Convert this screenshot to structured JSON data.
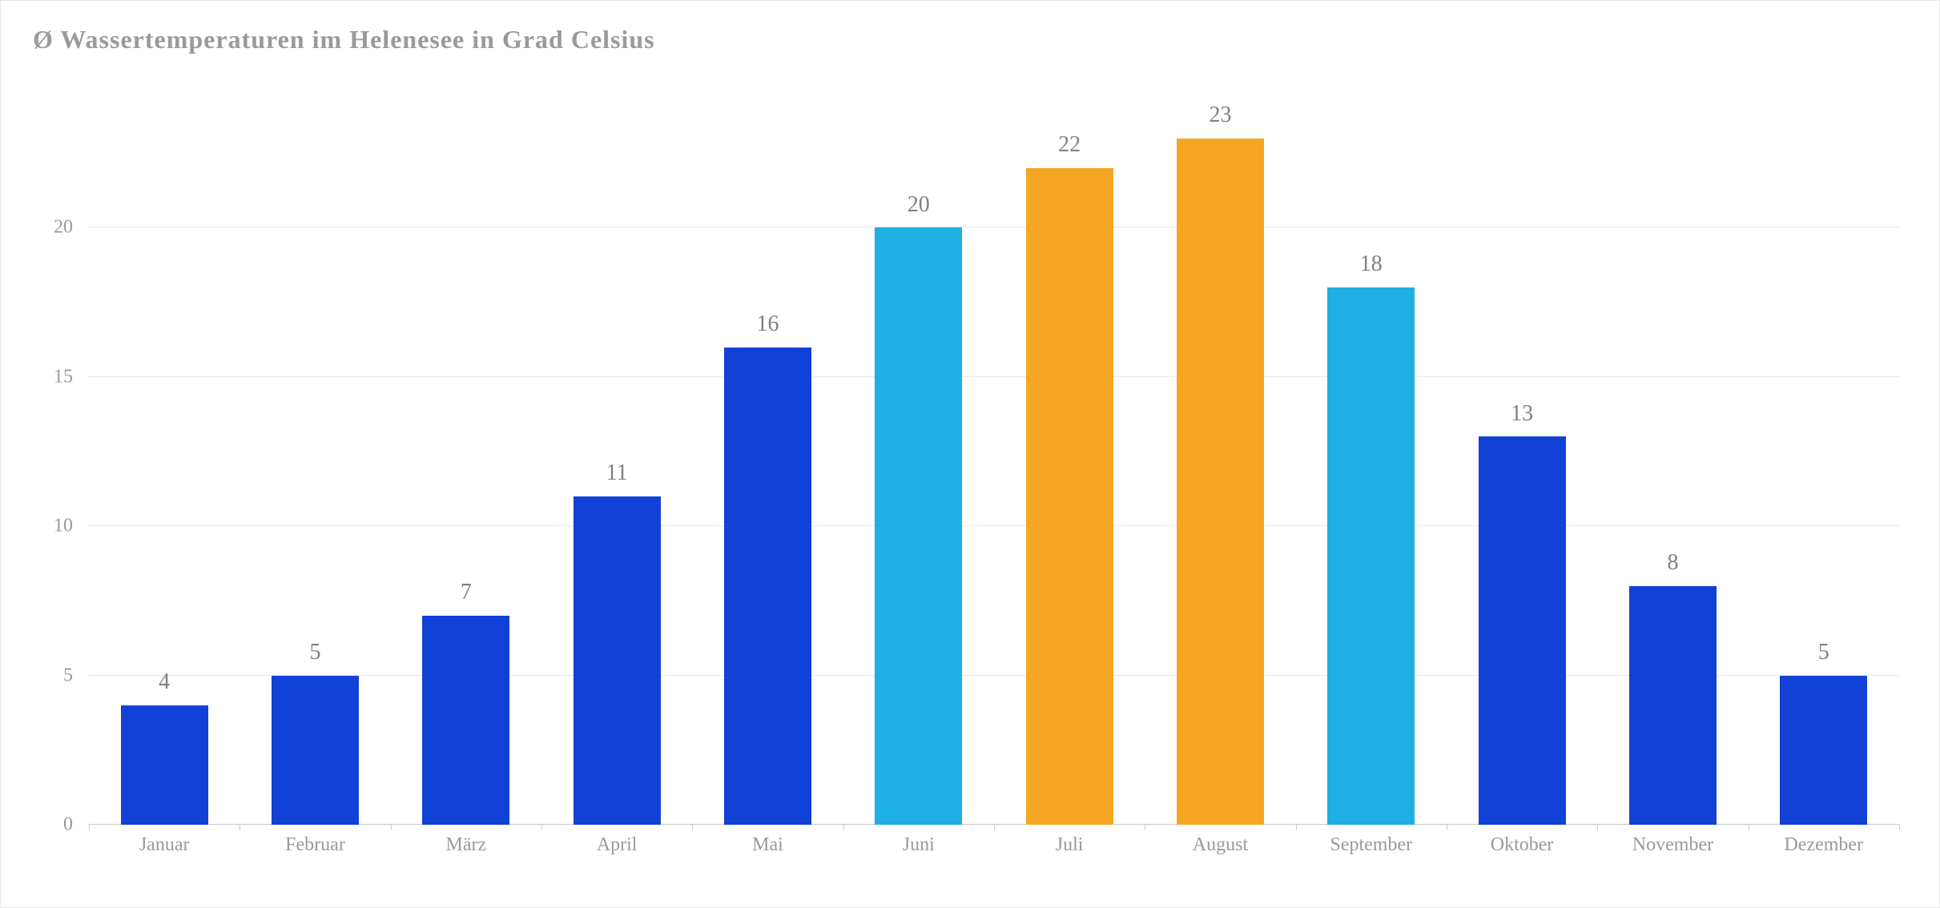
{
  "chart": {
    "type": "bar",
    "title": "Ø Wassertemperaturen im Helenesee in Grad Celsius",
    "title_fontsize": 32,
    "title_color": "#9a9a9a",
    "categories": [
      "Januar",
      "Februar",
      "März",
      "April",
      "Mai",
      "Juni",
      "Juli",
      "August",
      "September",
      "Oktober",
      "November",
      "Dezember"
    ],
    "values": [
      4,
      5,
      7,
      11,
      16,
      20,
      22,
      23,
      18,
      13,
      8,
      5
    ],
    "bar_colors": [
      "#1141d6",
      "#1141d6",
      "#1141d6",
      "#1141d6",
      "#1141d6",
      "#1eafe4",
      "#f5a623",
      "#f5a623",
      "#1eafe4",
      "#1141d6",
      "#1141d6",
      "#1141d6"
    ],
    "ylim": [
      0,
      25
    ],
    "yticks": [
      0,
      5,
      10,
      15,
      20
    ],
    "ytick_fontsize": 24,
    "xtick_fontsize": 24,
    "datalabel_fontsize": 28,
    "datalabel_color": "#808080",
    "axis_label_color": "#9a9a9a",
    "gridline_color": "#e8e8e8",
    "axis_line_color": "#c9c9c9",
    "tickmark_color": "#c9c9c9",
    "background_color": "#ffffff",
    "bar_width_pct": 58
  }
}
